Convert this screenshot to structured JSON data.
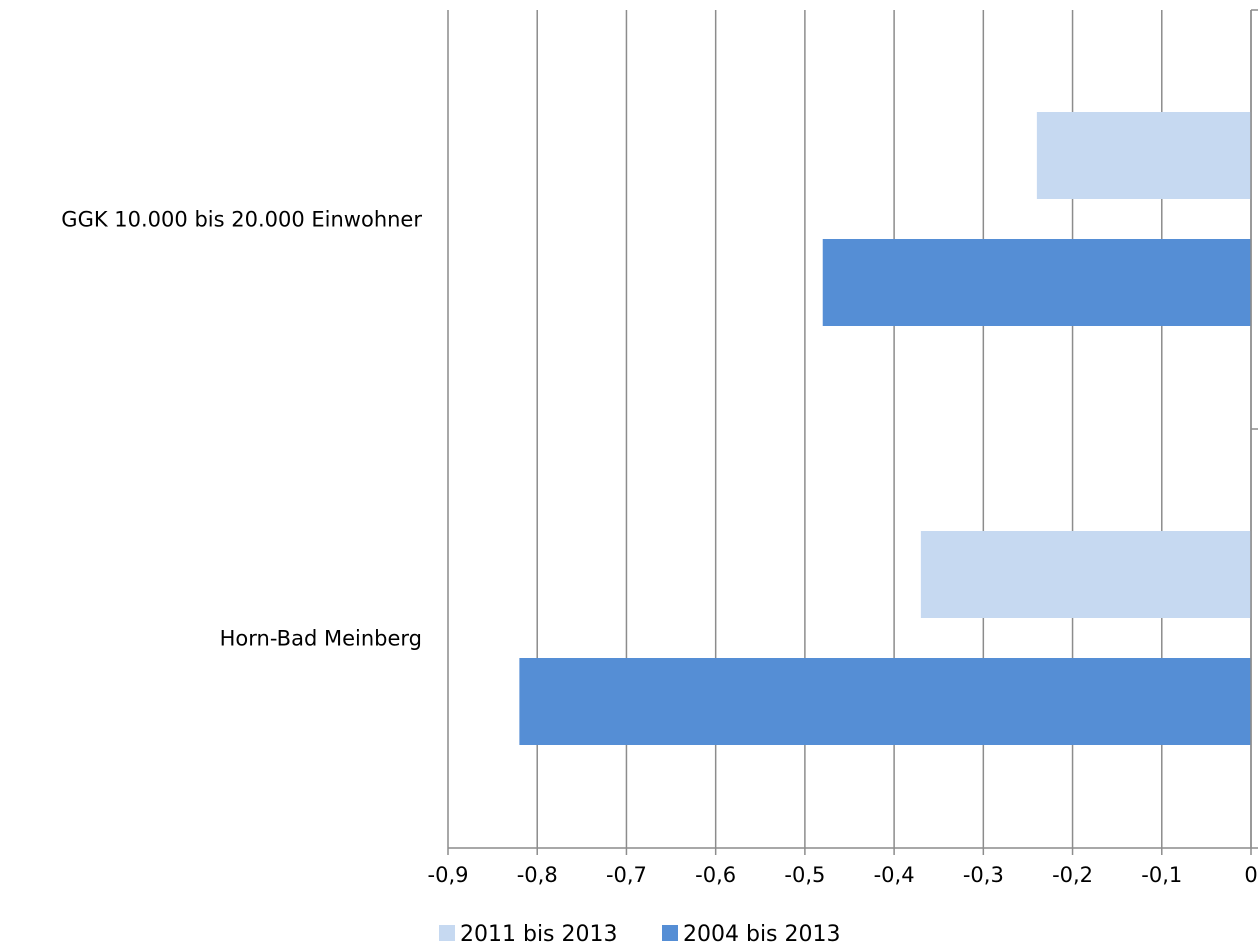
{
  "chart_data": {
    "type": "bar",
    "orientation": "horizontal",
    "categories": [
      "GGK 10.000 bis 20.000 Einwohner",
      "Horn-Bad Meinberg"
    ],
    "series": [
      {
        "name": "2011 bis 2013",
        "values": [
          -0.24,
          -0.37
        ],
        "color": "#c6d9f1"
      },
      {
        "name": "2004 bis 2013",
        "values": [
          -0.48,
          -0.82
        ],
        "color": "#558ed5"
      }
    ],
    "xlim": [
      -0.9,
      0
    ],
    "xticks": [
      -0.9,
      -0.8,
      -0.7,
      -0.6,
      -0.5,
      -0.4,
      -0.3,
      -0.2,
      -0.1,
      0
    ],
    "xtick_labels": [
      "-0,9",
      "-0,8",
      "-0,7",
      "-0,6",
      "-0,5",
      "-0,4",
      "-0,3",
      "-0,2",
      "-0,1",
      "0"
    ],
    "grid": "vertical",
    "legend": "bottom-center",
    "colors": {
      "gridline": "#8c8c8c",
      "axis": "#8c8c8c"
    }
  }
}
